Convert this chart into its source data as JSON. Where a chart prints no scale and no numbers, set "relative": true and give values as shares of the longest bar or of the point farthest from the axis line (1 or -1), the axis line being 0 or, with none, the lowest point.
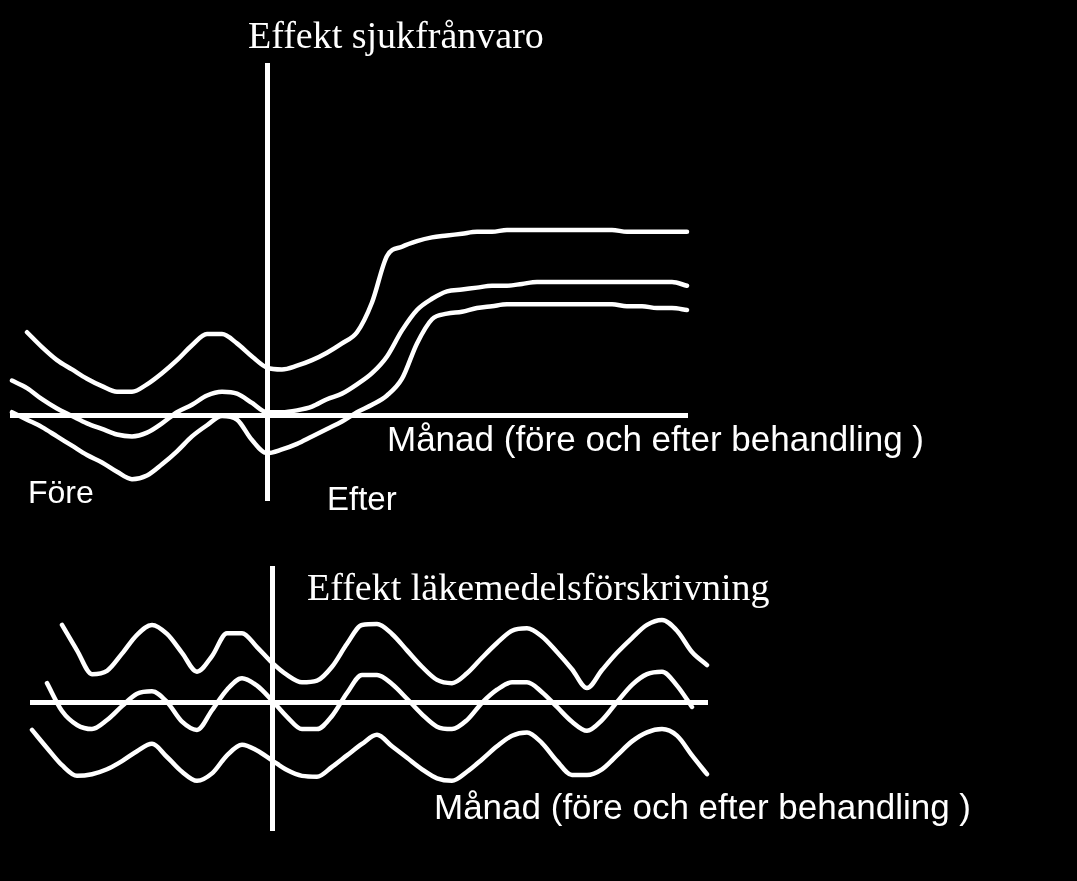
{
  "chart_data": [
    {
      "type": "line",
      "title": "Effekt sjukfrånvaro",
      "xlabel": "Månad (före och efter behandling )",
      "annotations": [
        "Före",
        "Efter"
      ],
      "relative": true,
      "marker": "none",
      "line_style": "solid",
      "categories": [
        null,
        null,
        null,
        null,
        null,
        null,
        null,
        null,
        null,
        null,
        null,
        null,
        null,
        null,
        null,
        null,
        null,
        null,
        null,
        null,
        null,
        null,
        null,
        null,
        null,
        null,
        null,
        null,
        null,
        null,
        null,
        null,
        null,
        null,
        null,
        null,
        null,
        null,
        null,
        null,
        null,
        null,
        null,
        null,
        null,
        null
      ],
      "series": [
        {
          "color": "#ffffff",
          "values": [
            null,
            0.45,
            0.37,
            0.3,
            0.25,
            0.2,
            0.16,
            0.13,
            0.13,
            0.17,
            0.23,
            0.3,
            0.38,
            0.44,
            0.44,
            0.39,
            0.32,
            0.26,
            0.25,
            0.27,
            0.3,
            0.34,
            0.39,
            0.45,
            0.61,
            0.86,
            0.91,
            0.94,
            0.96,
            0.97,
            0.98,
            0.99,
            0.99,
            1.0,
            1.0,
            1.0,
            1.0,
            1.0,
            1.0,
            1.0,
            1.0,
            0.99,
            0.99,
            0.99,
            0.99,
            0.99
          ]
        },
        {
          "color": "#ffffff",
          "values": [
            0.19,
            0.15,
            0.09,
            0.04,
            0.0,
            -0.04,
            -0.07,
            -0.1,
            -0.11,
            -0.09,
            -0.04,
            0.02,
            0.06,
            0.11,
            0.13,
            0.12,
            0.07,
            0.02,
            0.02,
            0.03,
            0.05,
            0.09,
            0.12,
            0.17,
            0.23,
            0.32,
            0.46,
            0.57,
            0.63,
            0.67,
            0.68,
            0.69,
            0.7,
            0.7,
            0.71,
            0.72,
            0.72,
            0.72,
            0.72,
            0.72,
            0.72,
            0.72,
            0.72,
            0.72,
            0.72,
            0.7
          ]
        },
        {
          "color": "#ffffff",
          "values": [
            0.02,
            -0.02,
            -0.06,
            -0.11,
            -0.16,
            -0.21,
            -0.25,
            -0.3,
            -0.34,
            -0.32,
            -0.26,
            -0.19,
            -0.11,
            -0.05,
            0.0,
            -0.02,
            -0.13,
            -0.2,
            -0.18,
            -0.15,
            -0.11,
            -0.07,
            -0.03,
            0.02,
            0.06,
            0.11,
            0.2,
            0.39,
            0.52,
            0.55,
            0.56,
            0.58,
            0.59,
            0.6,
            0.6,
            0.6,
            0.6,
            0.6,
            0.6,
            0.6,
            0.6,
            0.59,
            0.59,
            0.58,
            0.58,
            0.57
          ]
        }
      ]
    },
    {
      "type": "line",
      "title": "Effekt läkemedelsförskrivning",
      "xlabel": "Månad (före och efter behandling )",
      "relative": true,
      "marker": "none",
      "line_style": "solid",
      "categories": [
        null,
        null,
        null,
        null,
        null,
        null,
        null,
        null,
        null,
        null,
        null,
        null,
        null,
        null,
        null,
        null,
        null,
        null,
        null,
        null,
        null,
        null,
        null,
        null,
        null,
        null,
        null,
        null,
        null,
        null,
        null,
        null,
        null,
        null,
        null,
        null,
        null,
        null,
        null,
        null,
        null,
        null,
        null,
        null,
        null,
        null
      ],
      "series": [
        {
          "color": "#ffffff",
          "values": [
            null,
            null,
            0.94,
            0.63,
            0.34,
            0.38,
            0.59,
            0.82,
            0.94,
            0.83,
            0.6,
            0.37,
            0.56,
            0.84,
            0.84,
            0.67,
            0.48,
            0.33,
            0.24,
            0.26,
            0.43,
            0.71,
            0.94,
            0.95,
            0.83,
            0.63,
            0.43,
            0.27,
            0.23,
            0.35,
            0.54,
            0.72,
            0.87,
            0.9,
            0.8,
            0.61,
            0.4,
            0.17,
            0.39,
            0.6,
            0.78,
            0.94,
            1.0,
            0.87,
            0.61,
            0.45
          ]
        },
        {
          "color": "#ffffff",
          "values": [
            null,
            0.23,
            -0.11,
            -0.28,
            -0.33,
            -0.22,
            -0.05,
            0.1,
            0.13,
            0.0,
            -0.24,
            -0.34,
            -0.1,
            0.15,
            0.29,
            0.2,
            0.02,
            -0.18,
            -0.33,
            -0.33,
            -0.17,
            0.11,
            0.33,
            0.33,
            0.22,
            0.04,
            -0.15,
            -0.3,
            -0.33,
            -0.22,
            -0.01,
            0.15,
            0.24,
            0.24,
            0.12,
            -0.06,
            -0.24,
            -0.35,
            -0.22,
            0.0,
            0.21,
            0.34,
            0.37,
            0.2,
            -0.06,
            null
          ]
        },
        {
          "color": "#ffffff",
          "values": [
            -0.34,
            -0.56,
            -0.77,
            -0.9,
            -0.88,
            -0.82,
            -0.72,
            -0.6,
            -0.51,
            -0.67,
            -0.85,
            -0.96,
            -0.87,
            -0.65,
            -0.52,
            -0.59,
            -0.71,
            -0.83,
            -0.9,
            -0.91,
            -0.79,
            -0.65,
            -0.51,
            -0.4,
            -0.54,
            -0.68,
            -0.82,
            -0.93,
            -0.96,
            -0.85,
            -0.7,
            -0.54,
            -0.41,
            -0.37,
            -0.5,
            -0.72,
            -0.89,
            -0.89,
            -0.82,
            -0.65,
            -0.48,
            -0.37,
            -0.33,
            -0.41,
            -0.65,
            -0.88
          ]
        }
      ]
    }
  ]
}
